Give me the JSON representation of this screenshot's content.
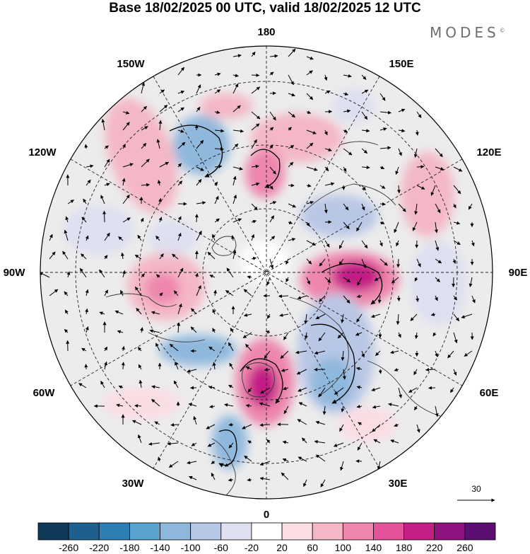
{
  "title": "Base 18/02/2025 00 UTC, valid 18/02/2025 12 UTC",
  "brand": {
    "name": "MODES",
    "mark": "©"
  },
  "longitude_labels": [
    "180",
    "150E",
    "120E",
    "90E",
    "60E",
    "30E",
    "0",
    "30W",
    "60W",
    "90W",
    "120W",
    "150W"
  ],
  "vector_scale": {
    "label": "30"
  },
  "colorbar": {
    "ticks": [
      "-260",
      "-220",
      "-180",
      "-140",
      "-100",
      "-60",
      "-20",
      "20",
      "60",
      "100",
      "140",
      "180",
      "220",
      "260"
    ],
    "colors": [
      "#0f3a5a",
      "#1f5f8e",
      "#2f7db5",
      "#5aa3cf",
      "#8fb8dd",
      "#b9c7e6",
      "#dedff0",
      "#ffffff",
      "#fbdde4",
      "#f4b7c6",
      "#ee86ad",
      "#e45299",
      "#c41f86",
      "#8f137e",
      "#5b0f72"
    ]
  }
}
